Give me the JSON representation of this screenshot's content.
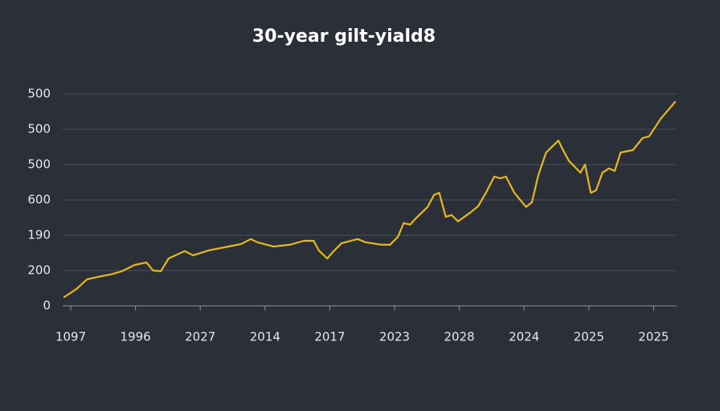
{
  "chart_data": {
    "type": "line",
    "title": "30-year gilt-yiald8",
    "color": "#e5b820",
    "grid": true,
    "x": [
      -0.1,
      0.09,
      0.25,
      0.42,
      0.62,
      0.79,
      0.99,
      1.17,
      1.27,
      1.39,
      1.51,
      1.76,
      1.89,
      2.13,
      2.38,
      2.63,
      2.78,
      2.88,
      3.13,
      3.38,
      3.6,
      3.75,
      3.83,
      3.96,
      4.06,
      4.18,
      4.43,
      4.55,
      4.8,
      4.93,
      5.05,
      5.14,
      5.24,
      5.33,
      5.51,
      5.61,
      5.69,
      5.79,
      5.88,
      5.98,
      6.17,
      6.29,
      6.41,
      6.54,
      6.63,
      6.72,
      6.85,
      7.03,
      7.12,
      7.22,
      7.34,
      7.53,
      7.59,
      7.69,
      7.87,
      7.94,
      8.03,
      8.11,
      8.21,
      8.31,
      8.4,
      8.49,
      8.68,
      8.83,
      8.93,
      9.11,
      9.33
    ],
    "values": [
      0.25,
      0.48,
      0.75,
      0.82,
      0.89,
      0.98,
      1.16,
      1.23,
      1.0,
      0.98,
      1.34,
      1.55,
      1.43,
      1.57,
      1.66,
      1.75,
      1.89,
      1.8,
      1.68,
      1.73,
      1.84,
      1.84,
      1.57,
      1.34,
      1.55,
      1.77,
      1.89,
      1.8,
      1.73,
      1.73,
      1.95,
      2.34,
      2.3,
      2.48,
      2.8,
      3.14,
      3.2,
      2.52,
      2.57,
      2.39,
      2.64,
      2.82,
      3.2,
      3.66,
      3.61,
      3.66,
      3.2,
      2.8,
      2.93,
      3.7,
      4.34,
      4.68,
      4.45,
      4.11,
      3.77,
      4.0,
      3.2,
      3.27,
      3.77,
      3.89,
      3.82,
      4.34,
      4.41,
      4.75,
      4.8,
      5.3,
      5.77
    ],
    "xlim": [
      -0.1,
      9.33
    ],
    "xticks": [
      {
        "value": 0,
        "label": "1097"
      },
      {
        "value": 1,
        "label": "1996"
      },
      {
        "value": 2,
        "label": "2027"
      },
      {
        "value": 3,
        "label": "2014"
      },
      {
        "value": 4,
        "label": "2017"
      },
      {
        "value": 5,
        "label": "2023"
      },
      {
        "value": 6,
        "label": "2028"
      },
      {
        "value": 7,
        "label": "2024"
      },
      {
        "value": 8,
        "label": "2025"
      },
      {
        "value": 9,
        "label": "2025"
      }
    ],
    "ylim": [
      0,
      6
    ],
    "yticks": [
      0,
      {
        "value": 1,
        "label": "200"
      },
      {
        "value": 2,
        "label": "190"
      },
      {
        "value": 3,
        "label": "600"
      },
      {
        "value": 4,
        "label": "500"
      },
      {
        "value": 5,
        "label": "500"
      },
      {
        "value": 6,
        "label": "500"
      }
    ]
  }
}
